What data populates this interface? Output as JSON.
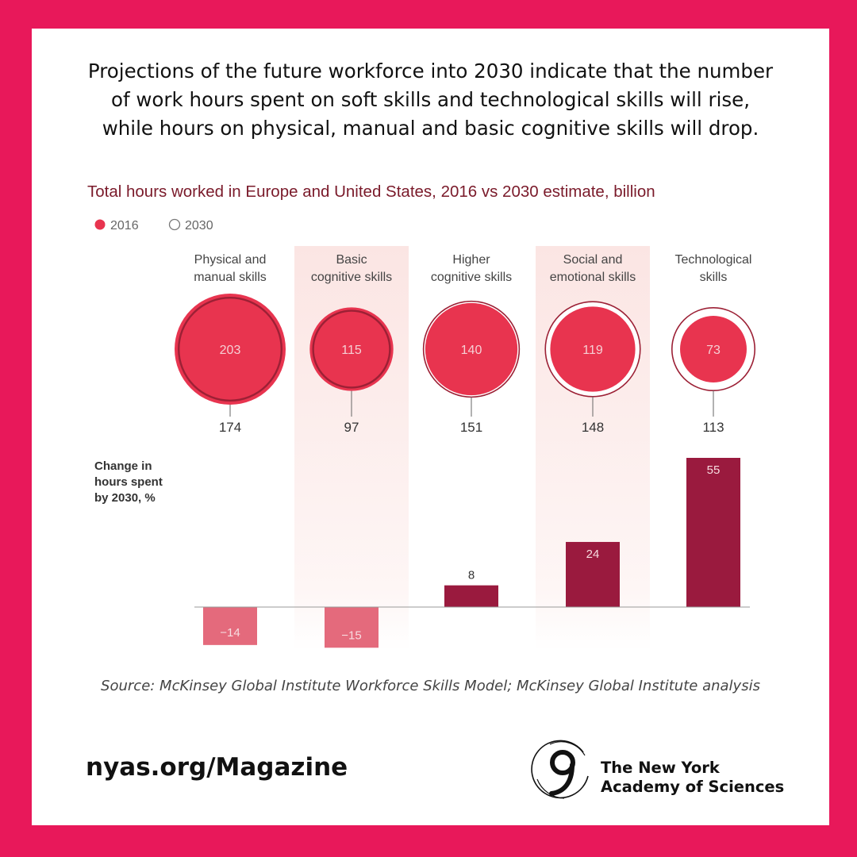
{
  "intro": [
    "Projections of the future workforce into 2030 indicate that the number",
    "of work hours spent on soft skills and technological skills will rise,",
    "while hours on physical, manual and basic cognitive skills will drop."
  ],
  "source": "Source: McKinsey Global Institute Workforce Skills Model; McKinsey Global Institute analysis",
  "footer": {
    "url": "nyas.org/Magazine",
    "logo_lines": [
      "The New York",
      "Academy of Sciences"
    ]
  },
  "colors": {
    "frame": "#e8185a",
    "bubble_fill": "#e8344f",
    "bubble_outline": "#9c2035",
    "bar_positive": "#9a1a3e",
    "bar_negative": "#e46a7c",
    "title": "#7a1a2a",
    "band": "#fbe5e3"
  },
  "chart_data": {
    "type": "bubble-bar",
    "title": "Total hours worked in Europe and United States, 2016 vs 2030 estimate, billion",
    "legend": [
      {
        "label": "2016",
        "style": "filled"
      },
      {
        "label": "2030",
        "style": "outline"
      }
    ],
    "legend_position": "top-left",
    "categories": [
      [
        "Physical and",
        "manual skills"
      ],
      [
        "Basic",
        "cognitive skills"
      ],
      [
        "Higher",
        "cognitive skills"
      ],
      [
        "Social and",
        "emotional skills"
      ],
      [
        "Technological",
        "skills"
      ]
    ],
    "series": [
      {
        "name": "2016",
        "values": [
          203,
          115,
          140,
          119,
          73
        ]
      },
      {
        "name": "2030",
        "values": [
          174,
          97,
          151,
          148,
          113
        ]
      }
    ],
    "change_label": [
      "Change in",
      "hours spent",
      "by 2030, %"
    ],
    "change_values": [
      "−14",
      "−15",
      "8",
      "24",
      "55"
    ],
    "shaded_columns": [
      1,
      3
    ]
  }
}
